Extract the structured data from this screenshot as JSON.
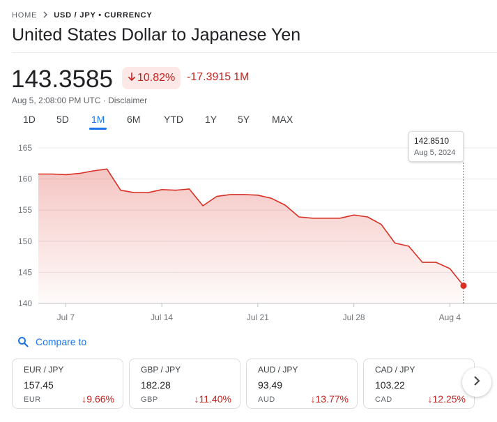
{
  "breadcrumb": {
    "home": "HOME",
    "current": "USD / JPY • CURRENCY"
  },
  "title": "United States Dollar to Japanese Yen",
  "quote": {
    "price": "143.3585",
    "percent_change": "10.82%",
    "absolute_change": "-17.3915",
    "period": "1M",
    "timestamp": "Aug 5, 2:08:00 PM UTC · ",
    "disclaimer": "Disclaimer",
    "direction": "down"
  },
  "range_tabs": [
    {
      "label": "1D",
      "active": false
    },
    {
      "label": "5D",
      "active": false
    },
    {
      "label": "1M",
      "active": true
    },
    {
      "label": "6M",
      "active": false
    },
    {
      "label": "YTD",
      "active": false
    },
    {
      "label": "1Y",
      "active": false
    },
    {
      "label": "5Y",
      "active": false
    },
    {
      "label": "MAX",
      "active": false
    }
  ],
  "tooltip": {
    "value": "142.8510",
    "date": "Aug 5, 2024"
  },
  "chart_data": {
    "type": "area",
    "ylim": [
      140,
      165
    ],
    "yticks": [
      165,
      160,
      155,
      150,
      145,
      140
    ],
    "xtick_labels": [
      "Jul 7",
      "Jul 14",
      "Jul 21",
      "Jul 28",
      "Aug 4"
    ],
    "xtick_index": [
      2,
      9,
      16,
      23,
      30
    ],
    "series": [
      {
        "values": [
          160.8,
          160.8,
          160.7,
          160.9,
          161.3,
          161.6,
          158.2,
          157.8,
          157.8,
          158.3,
          158.2,
          158.4,
          155.7,
          157.2,
          157.5,
          157.5,
          157.4,
          156.9,
          155.8,
          153.9,
          153.7,
          153.7,
          153.7,
          154.2,
          153.9,
          152.7,
          149.7,
          149.2,
          146.6,
          146.6,
          145.6,
          142.851
        ]
      }
    ],
    "colors": {
      "line": "#d93025",
      "fill": "#fce8e6"
    }
  },
  "compare": {
    "label": "Compare to"
  },
  "compare_cards": [
    {
      "pair": "EUR / JPY",
      "value": "157.45",
      "code": "EUR",
      "change": "9.66%"
    },
    {
      "pair": "GBP / JPY",
      "value": "182.28",
      "code": "GBP",
      "change": "11.40%"
    },
    {
      "pair": "AUD / JPY",
      "value": "93.49",
      "code": "AUD",
      "change": "13.77%"
    },
    {
      "pair": "CAD / JPY",
      "value": "103.22",
      "code": "CAD",
      "change": "12.25%"
    }
  ],
  "icons": {
    "chevron": "chevron-right-icon",
    "search": "search-icon",
    "down_arrow": "arrow-down-icon",
    "next": "chevron-right-icon"
  },
  "colors": {
    "negative": "#c5221f",
    "accent": "#1a73e8",
    "badge_bg": "#fce8e6"
  }
}
